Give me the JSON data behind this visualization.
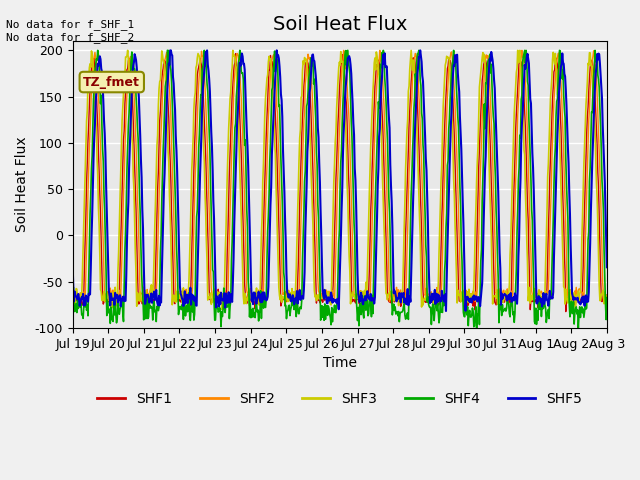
{
  "title": "Soil Heat Flux",
  "ylabel": "Soil Heat Flux",
  "xlabel": "Time",
  "ylim": [
    -100,
    210
  ],
  "series_colors": {
    "SHF1": "#cc0000",
    "SHF2": "#ff8800",
    "SHF3": "#cccc00",
    "SHF4": "#00aa00",
    "SHF5": "#0000cc"
  },
  "annotation_text": "No data for f_SHF_1\nNo data for f_SHF_2",
  "box_label": "TZ_fmet",
  "xtick_labels": [
    "Jul 19",
    "Jul 20",
    "Jul 21",
    "Jul 22",
    "Jul 23",
    "Jul 24",
    "Jul 25",
    "Jul 26",
    "Jul 27",
    "Jul 28",
    "Jul 29",
    "Jul 30",
    "Jul 31",
    "Aug 1",
    "Aug 2",
    "Aug 3"
  ],
  "ytick_vals": [
    -100,
    -50,
    0,
    50,
    100,
    150,
    200
  ],
  "ytick_labels": [
    "-100",
    "-50",
    "0",
    "50",
    "100",
    "150",
    "200"
  ],
  "background_color": "#e8e8e8",
  "fig_background_color": "#f0f0f0",
  "grid_color": "#ffffff",
  "title_fontsize": 14,
  "axis_fontsize": 10,
  "tick_fontsize": 9,
  "legend_fontsize": 10
}
